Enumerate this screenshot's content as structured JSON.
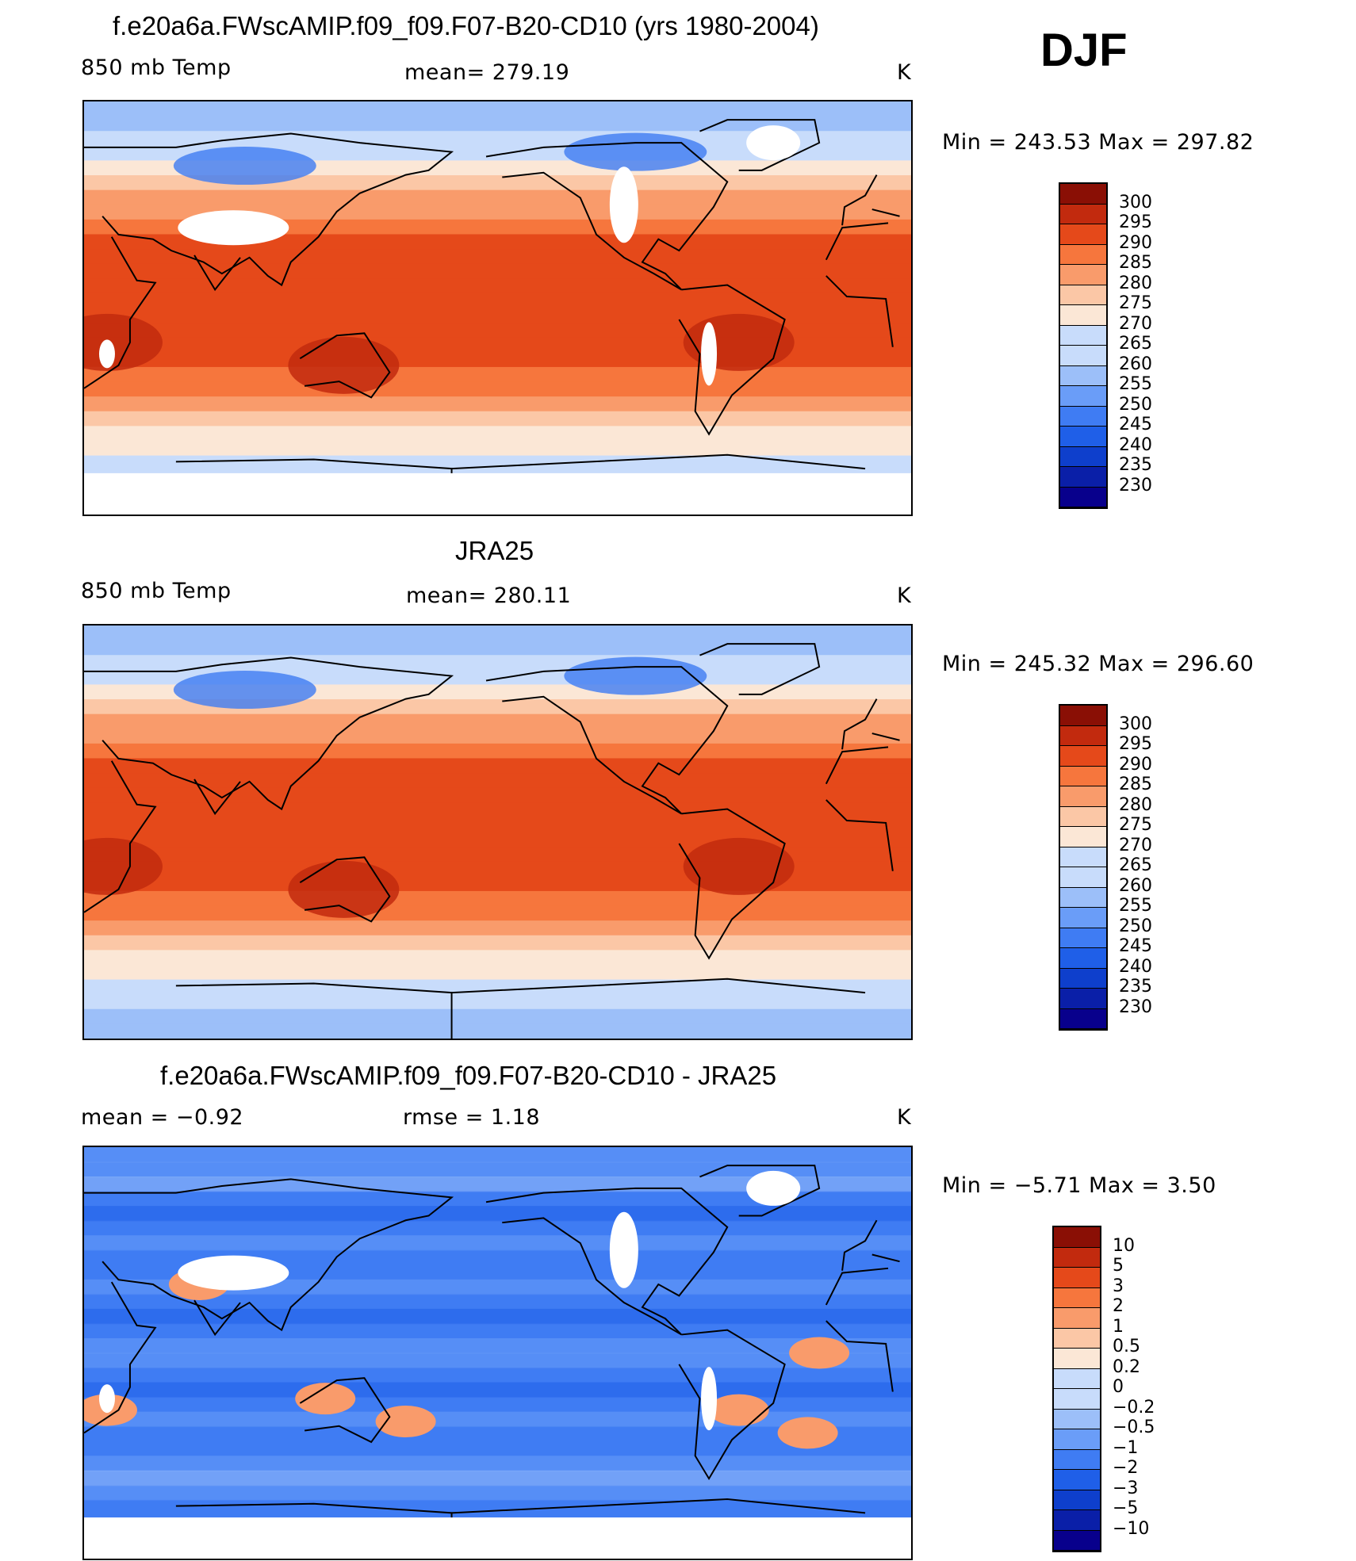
{
  "season_label": "DJF",
  "colors": {
    "temp_scale": [
      "#08008c",
      "#0a1fa8",
      "#0e3fcc",
      "#1f5fe8",
      "#3f7cf3",
      "#6a9df8",
      "#9cbff9",
      "#c8dcfb",
      "#fbe7d6",
      "#fbc7a6",
      "#f99b6b",
      "#f6763d",
      "#e5491a",
      "#c22a0e",
      "#8a0f05"
    ],
    "diff_scale": [
      "#08008c",
      "#0a1fa8",
      "#0e3fcc",
      "#1f5fe8",
      "#3f7cf3",
      "#6a9df8",
      "#9cbff9",
      "#c8dcfb",
      "#fbe7d6",
      "#fbc7a6",
      "#f99b6b",
      "#f6763d",
      "#e5491a",
      "#c22a0e",
      "#8a0f05"
    ]
  },
  "chart_data": [
    {
      "type": "heatmap",
      "title": "f.e20a6a.FWscAMIP.f09_f09.F07-B20-CD10 (yrs 1980-2004)",
      "left_label": "850 mb Temp",
      "center_label": "mean=  279.19",
      "units": "K",
      "range_text": "Min  =  243.53  Max  =  297.82",
      "min": 243.53,
      "max": 297.82,
      "mean": 279.19,
      "colorbar_labels": [
        "300",
        "295",
        "290",
        "285",
        "280",
        "275",
        "270",
        "265",
        "260",
        "255",
        "250",
        "245",
        "240",
        "235",
        "230"
      ],
      "missing_land": true
    },
    {
      "type": "heatmap",
      "title": "JRA25",
      "left_label": "850 mb Temp",
      "center_label": "mean=  280.11",
      "units": "K",
      "range_text": "Min  =  245.32  Max  =  296.60",
      "min": 245.32,
      "max": 296.6,
      "mean": 280.11,
      "colorbar_labels": [
        "300",
        "295",
        "290",
        "285",
        "280",
        "275",
        "270",
        "265",
        "260",
        "255",
        "250",
        "245",
        "240",
        "235",
        "230"
      ],
      "missing_land": false
    },
    {
      "type": "heatmap",
      "title": "f.e20a6a.FWscAMIP.f09_f09.F07-B20-CD10 - JRA25",
      "left_label": "mean  =    −0.92",
      "center_label": "rmse  =     1.18",
      "units": "K",
      "range_text": "Min  =    −5.71  Max  =      3.50",
      "min": -5.71,
      "max": 3.5,
      "mean": -0.92,
      "rmse": 1.18,
      "colorbar_labels": [
        "10",
        "5",
        "3",
        "2",
        "1",
        "0.5",
        "0.2",
        "0",
        "−0.2",
        "−0.5",
        "−1",
        "−2",
        "−3",
        "−5",
        "−10"
      ],
      "missing_land": true
    }
  ]
}
